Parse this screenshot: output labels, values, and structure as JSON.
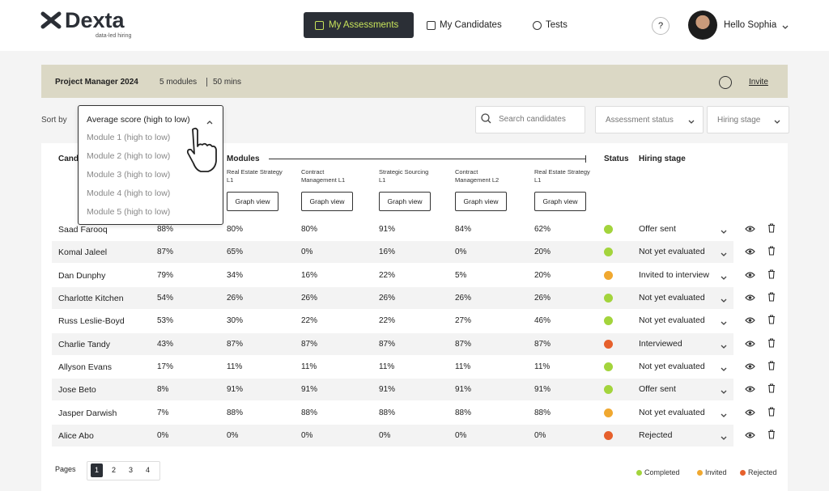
{
  "header": {
    "logo": "Dexta",
    "tagline": "data-led hiring",
    "nav": [
      "My Assessments",
      "My Candidates",
      "Tests"
    ],
    "help": "?",
    "greeting": "Hello Sophia"
  },
  "assessment": {
    "title": "Project Manager 2024",
    "modules": "5 modules",
    "duration": "50 mins",
    "invite": "Invite"
  },
  "controls": {
    "sort_label": "Sort by",
    "sort_selected": "Average score (high to low)",
    "sort_options": [
      "Module 1 (high to low)",
      "Module 2 (high to low)",
      "Module 3 (high to low)",
      "Module 4 (high to low)",
      "Module 5 (high to low)"
    ],
    "search_placeholder": "Search candidates",
    "filters": [
      "Assessment status",
      "Hiring stage"
    ]
  },
  "table": {
    "columns": {
      "candidates": "Candidates",
      "modules": "Modules",
      "status": "Status",
      "hiring_stage": "Hiring stage"
    },
    "modules": [
      "Real Estate Strategy L1",
      "Contract Management L1",
      "Strategic Sourcing L1",
      "Contract Management L2",
      "Real Estate Strategy L1"
    ],
    "graph_button": "Graph view",
    "rows": [
      [
        "Saad Farooq",
        "88%",
        "80%",
        "80%",
        "91%",
        "84%",
        "62%",
        "Completed",
        "Offer sent"
      ],
      [
        "Komal Jaleel",
        "87%",
        "65%",
        "0%",
        "16%",
        "0%",
        "20%",
        "Completed",
        "Not yet evaluated"
      ],
      [
        "Dan Dunphy",
        "79%",
        "34%",
        "16%",
        "22%",
        "5%",
        "20%",
        "Invited",
        "Invited to interview"
      ],
      [
        "Charlotte Kitchen",
        "54%",
        "26%",
        "26%",
        "26%",
        "26%",
        "26%",
        "Completed",
        "Not yet evaluated"
      ],
      [
        "Russ Leslie-Boyd",
        "53%",
        "30%",
        "22%",
        "22%",
        "27%",
        "46%",
        "Completed",
        "Not yet evaluated"
      ],
      [
        "Charlie Tandy",
        "43%",
        "87%",
        "87%",
        "87%",
        "87%",
        "87%",
        "Rejected",
        "Interviewed"
      ],
      [
        "Allyson Evans",
        "17%",
        "11%",
        "11%",
        "11%",
        "11%",
        "11%",
        "Completed",
        "Not yet evaluated"
      ],
      [
        "Jose Beto",
        "8%",
        "91%",
        "91%",
        "91%",
        "91%",
        "91%",
        "Completed",
        "Offer sent"
      ],
      [
        "Jasper Darwish",
        "7%",
        "88%",
        "88%",
        "88%",
        "88%",
        "88%",
        "Invited",
        "Not yet evaluated"
      ],
      [
        "Alice Abo",
        "0%",
        "0%",
        "0%",
        "0%",
        "0%",
        "0%",
        "Rejected",
        "Rejected"
      ]
    ]
  },
  "legend": [
    {
      "label": "Completed",
      "color": "#a3d43c"
    },
    {
      "label": "Invited",
      "color": "#f0a830"
    },
    {
      "label": "Rejected",
      "color": "#e6602c"
    }
  ],
  "pagination": {
    "label": "Pages",
    "pages": [
      "1",
      "2",
      "3",
      "4"
    ]
  }
}
